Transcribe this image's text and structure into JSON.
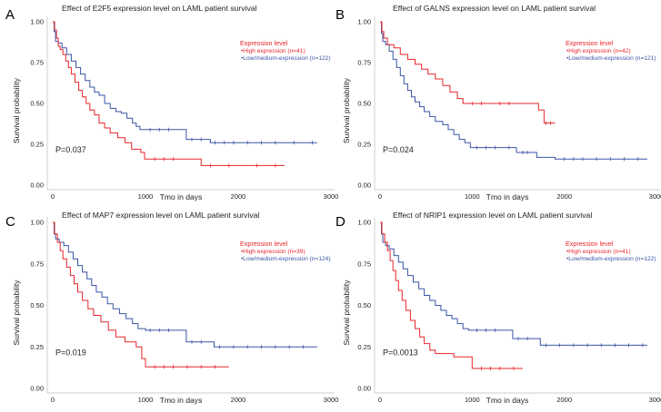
{
  "figure": {
    "background": "#ffffff",
    "high_color": "#e8262b",
    "low_color": "#3a55a6"
  },
  "chart_data": [
    {
      "type": "line",
      "step": true,
      "panel": "A",
      "title": "Effect of E2F5 expression level on LAML patient survival",
      "xlabel": "Tmo in days",
      "ylabel": "Survival probability",
      "xticks": [
        "0",
        "1000",
        "2000",
        "3000"
      ],
      "yticks": [
        "0.00",
        "0.25",
        "0.50",
        "0.75",
        "1.00"
      ],
      "xlim": [
        0,
        3000
      ],
      "ylim": [
        0,
        1
      ],
      "pvalue": "P=0.037",
      "legend": {
        "title": "Expression level",
        "position": "top-right"
      },
      "series": [
        {
          "name": "•High expression (n=41)",
          "color": "#e8262b",
          "points": [
            [
              0,
              1
            ],
            [
              20,
              0.95
            ],
            [
              40,
              0.9
            ],
            [
              60,
              0.85
            ],
            [
              80,
              0.83
            ],
            [
              110,
              0.8
            ],
            [
              140,
              0.76
            ],
            [
              170,
              0.72
            ],
            [
              200,
              0.68
            ],
            [
              240,
              0.63
            ],
            [
              280,
              0.58
            ],
            [
              320,
              0.54
            ],
            [
              360,
              0.5
            ],
            [
              400,
              0.46
            ],
            [
              450,
              0.43
            ],
            [
              500,
              0.38
            ],
            [
              560,
              0.35
            ],
            [
              620,
              0.32
            ],
            [
              700,
              0.29
            ],
            [
              780,
              0.26
            ],
            [
              850,
              0.22
            ],
            [
              950,
              0.2
            ],
            [
              990,
              0.16
            ],
            [
              1400,
              0.16
            ],
            [
              1600,
              0.12
            ],
            [
              2500,
              0.12
            ]
          ],
          "censors": [
            1100,
            1200,
            1300,
            1700,
            1900,
            2200,
            2400
          ]
        },
        {
          "name": "•Low/medium-expression (n=122)",
          "color": "#3a55a6",
          "points": [
            [
              0,
              1
            ],
            [
              15,
              0.94
            ],
            [
              30,
              0.88
            ],
            [
              60,
              0.87
            ],
            [
              100,
              0.84
            ],
            [
              150,
              0.8
            ],
            [
              200,
              0.76
            ],
            [
              250,
              0.72
            ],
            [
              300,
              0.68
            ],
            [
              350,
              0.64
            ],
            [
              400,
              0.6
            ],
            [
              450,
              0.57
            ],
            [
              500,
              0.55
            ],
            [
              560,
              0.5
            ],
            [
              620,
              0.47
            ],
            [
              680,
              0.45
            ],
            [
              740,
              0.44
            ],
            [
              800,
              0.41
            ],
            [
              860,
              0.38
            ],
            [
              900,
              0.36
            ],
            [
              940,
              0.34
            ],
            [
              1400,
              0.34
            ],
            [
              1440,
              0.28
            ],
            [
              1680,
              0.28
            ],
            [
              1700,
              0.26
            ],
            [
              2850,
              0.26
            ]
          ],
          "censors": [
            1050,
            1150,
            1250,
            1500,
            1600,
            1750,
            1850,
            1950,
            2100,
            2250,
            2400,
            2600,
            2800
          ]
        }
      ]
    },
    {
      "type": "line",
      "step": true,
      "panel": "B",
      "title": "Effect of GALNS expression level on LAML patient survival",
      "xlabel": "Tmo in days",
      "ylabel": "Survival probability",
      "xticks": [
        "0",
        "1000",
        "2000",
        "3000"
      ],
      "yticks": [
        "0.00",
        "0.25",
        "0.50",
        "0.75",
        "1.00"
      ],
      "xlim": [
        0,
        3000
      ],
      "ylim": [
        0,
        1
      ],
      "pvalue": "P=0.024",
      "legend": {
        "title": "Expression level",
        "position": "top-right"
      },
      "series": [
        {
          "name": "•High expression (n=42)",
          "color": "#e8262b",
          "points": [
            [
              0,
              1
            ],
            [
              20,
              0.94
            ],
            [
              40,
              0.9
            ],
            [
              80,
              0.86
            ],
            [
              150,
              0.84
            ],
            [
              220,
              0.8
            ],
            [
              300,
              0.77
            ],
            [
              380,
              0.74
            ],
            [
              450,
              0.71
            ],
            [
              520,
              0.68
            ],
            [
              600,
              0.65
            ],
            [
              680,
              0.61
            ],
            [
              760,
              0.57
            ],
            [
              840,
              0.53
            ],
            [
              900,
              0.5
            ],
            [
              1700,
              0.5
            ],
            [
              1720,
              0.46
            ],
            [
              1780,
              0.38
            ],
            [
              1900,
              0.38
            ]
          ],
          "censors": [
            1000,
            1100,
            1300,
            1400,
            1800,
            1850
          ]
        },
        {
          "name": "•Low/medium-expression (n=121)",
          "color": "#3a55a6",
          "points": [
            [
              0,
              1
            ],
            [
              15,
              0.93
            ],
            [
              30,
              0.88
            ],
            [
              60,
              0.86
            ],
            [
              100,
              0.82
            ],
            [
              140,
              0.77
            ],
            [
              180,
              0.72
            ],
            [
              220,
              0.67
            ],
            [
              260,
              0.62
            ],
            [
              300,
              0.58
            ],
            [
              340,
              0.54
            ],
            [
              380,
              0.51
            ],
            [
              430,
              0.48
            ],
            [
              480,
              0.45
            ],
            [
              540,
              0.42
            ],
            [
              600,
              0.39
            ],
            [
              680,
              0.37
            ],
            [
              740,
              0.34
            ],
            [
              800,
              0.31
            ],
            [
              860,
              0.28
            ],
            [
              920,
              0.26
            ],
            [
              980,
              0.23
            ],
            [
              1300,
              0.23
            ],
            [
              1480,
              0.2
            ],
            [
              1700,
              0.17
            ],
            [
              1900,
              0.16
            ],
            [
              2900,
              0.16
            ]
          ],
          "censors": [
            1050,
            1150,
            1250,
            1400,
            1550,
            1600,
            2000,
            2100,
            2200,
            2350,
            2500,
            2650,
            2800
          ]
        }
      ]
    },
    {
      "type": "line",
      "step": true,
      "panel": "C",
      "title": "Effect of MAP7 expression level on LAML patient survival",
      "xlabel": "Tmo in days",
      "ylabel": "Survival probability",
      "xticks": [
        "0",
        "1000",
        "2000",
        "3000"
      ],
      "yticks": [
        "0.00",
        "0.25",
        "0.50",
        "0.75",
        "1.00"
      ],
      "xlim": [
        0,
        3000
      ],
      "ylim": [
        0,
        1
      ],
      "pvalue": "P=0.019",
      "legend": {
        "title": "Expression level",
        "position": "top-right"
      },
      "series": [
        {
          "name": "•High expression (n=39)",
          "color": "#e8262b",
          "points": [
            [
              0,
              1
            ],
            [
              20,
              0.93
            ],
            [
              50,
              0.88
            ],
            [
              80,
              0.83
            ],
            [
              110,
              0.78
            ],
            [
              150,
              0.73
            ],
            [
              190,
              0.68
            ],
            [
              230,
              0.63
            ],
            [
              270,
              0.58
            ],
            [
              320,
              0.53
            ],
            [
              380,
              0.48
            ],
            [
              440,
              0.44
            ],
            [
              520,
              0.4
            ],
            [
              600,
              0.35
            ],
            [
              680,
              0.31
            ],
            [
              780,
              0.28
            ],
            [
              900,
              0.25
            ],
            [
              960,
              0.18
            ],
            [
              1000,
              0.13
            ],
            [
              1900,
              0.13
            ]
          ],
          "censors": [
            1100,
            1200,
            1300,
            1450,
            1600,
            1750
          ]
        },
        {
          "name": "•Low/medium-expression (n=124)",
          "color": "#3a55a6",
          "points": [
            [
              0,
              1
            ],
            [
              15,
              0.93
            ],
            [
              30,
              0.9
            ],
            [
              70,
              0.88
            ],
            [
              120,
              0.86
            ],
            [
              170,
              0.82
            ],
            [
              220,
              0.78
            ],
            [
              270,
              0.74
            ],
            [
              320,
              0.7
            ],
            [
              370,
              0.66
            ],
            [
              420,
              0.62
            ],
            [
              470,
              0.58
            ],
            [
              530,
              0.55
            ],
            [
              590,
              0.51
            ],
            [
              650,
              0.48
            ],
            [
              720,
              0.45
            ],
            [
              790,
              0.42
            ],
            [
              860,
              0.39
            ],
            [
              920,
              0.36
            ],
            [
              1000,
              0.35
            ],
            [
              1400,
              0.35
            ],
            [
              1440,
              0.28
            ],
            [
              1700,
              0.28
            ],
            [
              1740,
              0.25
            ],
            [
              2850,
              0.25
            ]
          ],
          "censors": [
            1050,
            1150,
            1250,
            1500,
            1600,
            1800,
            1950,
            2100,
            2250,
            2400,
            2550,
            2700
          ]
        }
      ]
    },
    {
      "type": "line",
      "step": true,
      "panel": "D",
      "title": "Effect of NRIP1 expression level on LAML patient survival",
      "xlabel": "Tmo in days",
      "ylabel": "Survival probability",
      "xticks": [
        "0",
        "1000",
        "2000",
        "3000"
      ],
      "yticks": [
        "0.00",
        "0.25",
        "0.50",
        "0.75",
        "1.00"
      ],
      "xlim": [
        0,
        3000
      ],
      "ylim": [
        0,
        1
      ],
      "pvalue": "P=0.0013",
      "legend": {
        "title": "Expression level",
        "position": "top-right"
      },
      "series": [
        {
          "name": "•High expression (n=41)",
          "color": "#e8262b",
          "points": [
            [
              0,
              1
            ],
            [
              20,
              0.93
            ],
            [
              50,
              0.88
            ],
            [
              80,
              0.83
            ],
            [
              110,
              0.77
            ],
            [
              140,
              0.71
            ],
            [
              170,
              0.65
            ],
            [
              200,
              0.59
            ],
            [
              240,
              0.53
            ],
            [
              280,
              0.47
            ],
            [
              330,
              0.41
            ],
            [
              380,
              0.36
            ],
            [
              430,
              0.31
            ],
            [
              480,
              0.27
            ],
            [
              540,
              0.23
            ],
            [
              600,
              0.21
            ],
            [
              750,
              0.21
            ],
            [
              800,
              0.19
            ],
            [
              1000,
              0.12
            ],
            [
              1550,
              0.12
            ]
          ],
          "censors": [
            1100,
            1200,
            1300,
            1450
          ]
        },
        {
          "name": "•Low/medium-expression (n=122)",
          "color": "#3a55a6",
          "points": [
            [
              0,
              1
            ],
            [
              15,
              0.93
            ],
            [
              30,
              0.88
            ],
            [
              60,
              0.86
            ],
            [
              100,
              0.84
            ],
            [
              150,
              0.8
            ],
            [
              200,
              0.76
            ],
            [
              250,
              0.72
            ],
            [
              300,
              0.68
            ],
            [
              360,
              0.64
            ],
            [
              420,
              0.6
            ],
            [
              480,
              0.56
            ],
            [
              540,
              0.53
            ],
            [
              600,
              0.5
            ],
            [
              660,
              0.47
            ],
            [
              720,
              0.44
            ],
            [
              780,
              0.42
            ],
            [
              840,
              0.39
            ],
            [
              900,
              0.36
            ],
            [
              960,
              0.35
            ],
            [
              1400,
              0.35
            ],
            [
              1440,
              0.3
            ],
            [
              1700,
              0.3
            ],
            [
              1740,
              0.26
            ],
            [
              2900,
              0.26
            ]
          ],
          "censors": [
            1050,
            1150,
            1250,
            1500,
            1600,
            1800,
            1950,
            2100,
            2250,
            2400,
            2550,
            2700,
            2850
          ]
        }
      ]
    }
  ]
}
